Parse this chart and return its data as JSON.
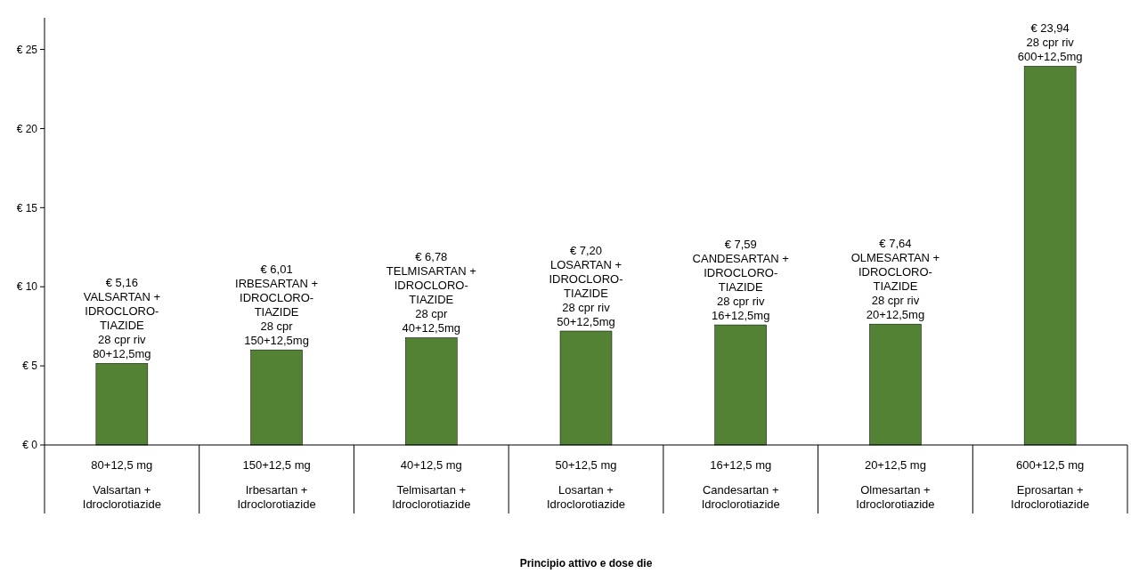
{
  "chart_data": {
    "type": "bar",
    "xlabel": "Principio attivo e dose die",
    "categories": [
      "80+12,5 mg\nValsartan +\nIdroclorotiazide",
      "150+12,5 mg\nIrbesartan +\nIdroclorotiazide",
      "40+12,5 mg\nTelmisartan +\nIdroclorotiazide",
      "50+12,5 mg\nLosartan +\nIdroclorotiazide",
      "16+12,5 mg\nCandesartan +\nIdroclorotiazide",
      "20+12,5 mg\nOlmesartan +\nIdroclorotiazide",
      "600+12,5 mg\nEprosartan +\nIdroclorotiazide"
    ],
    "values": [
      5.16,
      6.01,
      6.78,
      7.2,
      7.59,
      7.64,
      23.94
    ],
    "value_labels": [
      "€ 5,16\nVALSARTAN +\nIDROCLORO-\nTIAZIDE\n28 cpr riv\n80+12,5mg",
      "€ 6,01\nIRBESARTAN +\nIDROCLORO-\nTIAZIDE\n28 cpr\n150+12,5mg",
      "€ 6,78\nTELMISARTAN +\nIDROCLORO-\nTIAZIDE\n28 cpr\n40+12,5mg",
      "€ 7,20\nLOSARTAN +\nIDROCLORO-\nTIAZIDE\n28 cpr riv\n50+12,5mg",
      "€ 7,59\nCANDESARTAN +\nIDROCLORO-\nTIAZIDE\n28 cpr riv\n16+12,5mg",
      "€ 7,64\nOLMESARTAN +\nIDROCLORO-\nTIAZIDE\n28 cpr riv\n20+12,5mg",
      "€ 23,94\n28 cpr riv\n600+12,5mg"
    ],
    "color": "#548235",
    "ylim": [
      0,
      27
    ],
    "yticks": [
      {
        "value": 0,
        "label": "€ 0"
      },
      {
        "value": 5,
        "label": "€ 5"
      },
      {
        "value": 10,
        "label": "€ 10"
      },
      {
        "value": 15,
        "label": "€ 15"
      },
      {
        "value": 20,
        "label": "€ 20"
      },
      {
        "value": 25,
        "label": "€ 25"
      }
    ],
    "grid": false
  }
}
